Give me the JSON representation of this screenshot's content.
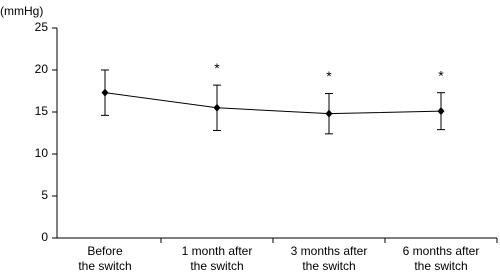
{
  "chart_data": {
    "type": "line",
    "y_label": "(mmHg)",
    "categories": [
      [
        "Before",
        "the switch"
      ],
      [
        "1 month after",
        "the switch"
      ],
      [
        "3 months after",
        "the switch"
      ],
      [
        "6 months after",
        "the switch"
      ]
    ],
    "values": [
      17.3,
      15.5,
      14.8,
      15.1
    ],
    "errors": [
      2.7,
      2.7,
      2.4,
      2.2
    ],
    "annotations": [
      null,
      "*",
      "*",
      "*"
    ],
    "color": "#000000",
    "ylim": [
      0,
      25
    ],
    "yticks": [
      0,
      5,
      10,
      15,
      20,
      25
    ],
    "grid": false
  }
}
